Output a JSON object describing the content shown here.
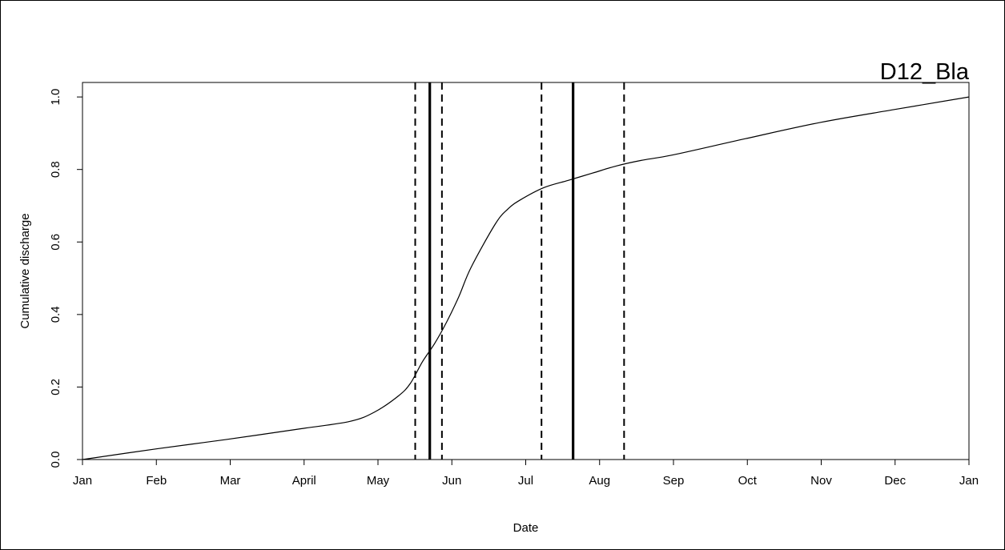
{
  "chart_data": {
    "type": "line",
    "title": "D12_Bla",
    "xlabel": "Date",
    "ylabel": "Cumulative discharge",
    "x_ticks": [
      "Jan",
      "Feb",
      "Mar",
      "April",
      "May",
      "Jun",
      "Jul",
      "Aug",
      "Sep",
      "Oct",
      "Nov",
      "Dec",
      "Jan"
    ],
    "xlim": [
      0,
      365
    ],
    "ylim": [
      0,
      1.04
    ],
    "y_ticks": [
      "0.0",
      "0.2",
      "0.4",
      "0.6",
      "0.8",
      "1.0"
    ],
    "grid": false,
    "series": [
      {
        "x": [
          0,
          31,
          59,
          90,
          110,
          120,
          130,
          135,
          140,
          145,
          150,
          155,
          160,
          170,
          175,
          180,
          190,
          200,
          210,
          220,
          230,
          243,
          273,
          304,
          334,
          365
        ],
        "y": [
          0.0,
          0.03,
          0.055,
          0.085,
          0.105,
          0.13,
          0.175,
          0.21,
          0.27,
          0.32,
          0.38,
          0.45,
          0.53,
          0.65,
          0.69,
          0.715,
          0.75,
          0.77,
          0.79,
          0.81,
          0.825,
          0.84,
          0.885,
          0.93,
          0.965,
          1.0
        ]
      }
    ],
    "vertical_lines": [
      {
        "x": 137,
        "style": "dashed"
      },
      {
        "x": 143,
        "style": "solid"
      },
      {
        "x": 148,
        "style": "dashed"
      },
      {
        "x": 189,
        "style": "dashed"
      },
      {
        "x": 202,
        "style": "solid"
      },
      {
        "x": 223,
        "style": "dashed"
      }
    ]
  }
}
